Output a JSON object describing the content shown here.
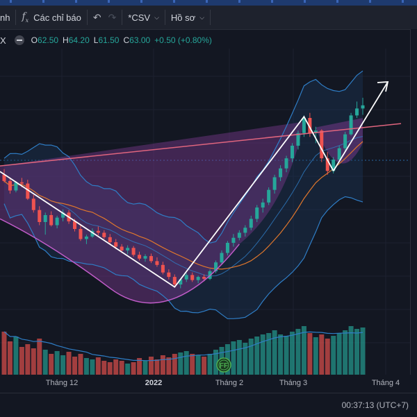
{
  "toolbar": {
    "left_cut_label": "nh",
    "indicators_label": "Các chỉ báo",
    "csv_label": "*CSV",
    "profile_label": "Hồ sơ"
  },
  "legend": {
    "symbol_cut": "X",
    "o_key": "O",
    "o_val": "62.50",
    "h_key": "H",
    "h_val": "64.20",
    "l_key": "L",
    "l_val": "61.50",
    "c_key": "C",
    "c_val": "63.00",
    "change": "+0.50 (+0.80%)"
  },
  "xaxis": {
    "labels": [
      "Tháng 12",
      "2022",
      "Tháng 2",
      "Tháng 3",
      "Tháng 4"
    ]
  },
  "footer": {
    "clock": "00:37:13 (UTC+7)"
  },
  "badge_label": "FF",
  "colors": {
    "bg": "#131722",
    "up": "#26a69a",
    "down": "#ef5350",
    "bb_outer": "#2f7ec7",
    "ma_orange": "#e0772c",
    "fill_purple": "#7b3a8f",
    "trend_white": "#ffffff",
    "cup_line": "#c05cc8",
    "rim_line": "#e0657e"
  },
  "chart_data": {
    "type": "candlestick",
    "last_close": 63.0,
    "candles": [
      [
        52.0,
        52.9,
        50.8,
        51.0
      ],
      [
        51.0,
        51.5,
        49.0,
        49.5
      ],
      [
        49.5,
        51.0,
        49.2,
        50.8
      ],
      [
        50.8,
        51.5,
        50.0,
        50.6
      ],
      [
        50.6,
        51.2,
        48.0,
        48.2
      ],
      [
        48.2,
        48.8,
        46.0,
        46.4
      ],
      [
        46.4,
        47.0,
        44.0,
        44.5
      ],
      [
        44.5,
        46.0,
        42.5,
        45.6
      ],
      [
        45.6,
        46.2,
        43.8,
        44.0
      ],
      [
        44.0,
        45.5,
        43.5,
        45.2
      ],
      [
        45.2,
        46.5,
        44.6,
        46.0
      ],
      [
        46.0,
        46.4,
        44.2,
        44.6
      ],
      [
        44.6,
        45.0,
        43.0,
        43.4
      ],
      [
        43.4,
        44.0,
        41.5,
        41.8
      ],
      [
        41.8,
        42.5,
        41.0,
        42.2
      ],
      [
        42.2,
        43.5,
        42.0,
        43.1
      ],
      [
        43.1,
        43.8,
        42.4,
        42.8
      ],
      [
        42.8,
        43.2,
        41.8,
        42.1
      ],
      [
        42.1,
        42.6,
        41.0,
        41.3
      ],
      [
        41.3,
        41.8,
        40.2,
        40.6
      ],
      [
        40.6,
        41.0,
        39.6,
        40.0
      ],
      [
        40.0,
        40.8,
        39.4,
        40.4
      ],
      [
        40.4,
        40.7,
        39.0,
        39.3
      ],
      [
        39.3,
        39.8,
        38.4,
        38.7
      ],
      [
        38.7,
        39.4,
        38.2,
        39.1
      ],
      [
        39.1,
        39.5,
        38.0,
        38.3
      ],
      [
        38.3,
        38.9,
        37.4,
        37.7
      ],
      [
        37.7,
        38.2,
        36.2,
        36.5
      ],
      [
        36.5,
        37.0,
        35.4,
        35.8
      ],
      [
        35.8,
        36.2,
        34.2,
        34.6
      ],
      [
        34.6,
        35.6,
        34.0,
        35.4
      ],
      [
        35.4,
        36.4,
        35.0,
        36.1
      ],
      [
        36.1,
        36.5,
        35.0,
        35.3
      ],
      [
        35.3,
        36.0,
        34.8,
        35.8
      ],
      [
        35.8,
        36.2,
        35.1,
        35.5
      ],
      [
        35.5,
        37.0,
        35.3,
        36.7
      ],
      [
        36.7,
        38.4,
        36.4,
        38.1
      ],
      [
        38.1,
        40.0,
        37.8,
        39.6
      ],
      [
        39.6,
        41.5,
        39.2,
        41.2
      ],
      [
        41.2,
        42.6,
        40.6,
        42.0
      ],
      [
        42.0,
        43.2,
        41.6,
        42.8
      ],
      [
        42.8,
        44.0,
        42.2,
        43.6
      ],
      [
        43.6,
        45.5,
        43.2,
        45.0
      ],
      [
        45.0,
        47.2,
        44.5,
        46.8
      ],
      [
        46.8,
        48.2,
        46.0,
        47.6
      ],
      [
        47.6,
        50.0,
        47.2,
        49.6
      ],
      [
        49.6,
        52.0,
        49.0,
        51.6
      ],
      [
        51.6,
        53.5,
        51.0,
        53.0
      ],
      [
        53.0,
        55.0,
        52.4,
        54.6
      ],
      [
        54.6,
        57.0,
        54.0,
        56.6
      ],
      [
        56.6,
        59.0,
        56.0,
        58.6
      ],
      [
        58.6,
        61.4,
        58.0,
        61.0
      ],
      [
        61.0,
        61.8,
        58.0,
        58.6
      ],
      [
        58.6,
        59.6,
        57.0,
        59.0
      ],
      [
        59.0,
        59.2,
        54.0,
        54.6
      ],
      [
        54.6,
        55.6,
        52.0,
        52.6
      ],
      [
        52.6,
        54.8,
        52.2,
        54.4
      ],
      [
        54.4,
        56.6,
        54.0,
        56.2
      ],
      [
        56.2,
        58.8,
        55.8,
        58.4
      ],
      [
        58.4,
        61.8,
        58.2,
        61.4
      ],
      [
        61.4,
        63.6,
        61.0,
        62.5
      ],
      [
        62.5,
        64.2,
        61.5,
        63.0
      ]
    ],
    "volumes": [
      62,
      48,
      55,
      40,
      44,
      38,
      52,
      36,
      30,
      34,
      28,
      33,
      26,
      30,
      24,
      22,
      25,
      20,
      18,
      22,
      20,
      16,
      18,
      24,
      20,
      26,
      22,
      28,
      25,
      30,
      32,
      34,
      30,
      28,
      26,
      30,
      36,
      40,
      44,
      48,
      50,
      46,
      52,
      55,
      58,
      60,
      64,
      58,
      56,
      62,
      66,
      70,
      60,
      54,
      58,
      52,
      56,
      60,
      64,
      70,
      66,
      68
    ]
  }
}
